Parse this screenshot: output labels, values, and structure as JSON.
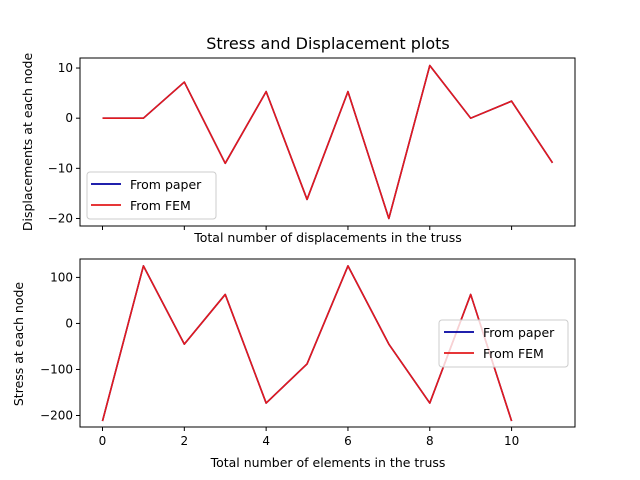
{
  "chart_data": [
    {
      "type": "line",
      "title": "Stress and Displacement plots",
      "xlabel": "Total number of displacements in the truss",
      "ylabel": "Displacements at each node",
      "x": [
        0,
        1,
        2,
        3,
        4,
        5,
        6,
        7,
        8,
        9,
        10,
        11
      ],
      "xlim": [
        -0.55,
        11.55
      ],
      "ylim": [
        -21.5,
        12
      ],
      "yticks": [
        10,
        0,
        -10,
        -20
      ],
      "xticks_shown": false,
      "series": [
        {
          "name": "From paper",
          "color": "#0000a0",
          "values": [
            0.0,
            0.0,
            7.2,
            -9.0,
            5.3,
            -16.2,
            5.3,
            -20.0,
            10.5,
            0.0,
            3.4,
            -8.9
          ]
        },
        {
          "name": "From FEM",
          "color": "#e31a1c",
          "values": [
            0.0,
            0.0,
            7.2,
            -9.0,
            5.3,
            -16.2,
            5.3,
            -20.0,
            10.5,
            0.0,
            3.4,
            -8.9
          ]
        }
      ],
      "legend": "lower-left"
    },
    {
      "type": "line",
      "title": "",
      "xlabel": "Total number of elements in the truss",
      "ylabel": "Stress at each node",
      "x": [
        0,
        1,
        2,
        3,
        4,
        5,
        6,
        7,
        8,
        9,
        10
      ],
      "xlim": [
        -0.55,
        11.55
      ],
      "ylim": [
        -225,
        140
      ],
      "yticks": [
        100,
        0,
        -100,
        -200
      ],
      "xticks": [
        0,
        2,
        4,
        6,
        8,
        10
      ],
      "series": [
        {
          "name": "From paper",
          "color": "#0000a0",
          "values": [
            -212,
            125,
            -45,
            63,
            -173,
            -88,
            125,
            -45,
            -173,
            63,
            -212
          ]
        },
        {
          "name": "From FEM",
          "color": "#e31a1c",
          "values": [
            -212,
            125,
            -45,
            63,
            -173,
            -88,
            125,
            -45,
            -173,
            63,
            -212
          ]
        }
      ],
      "legend": "right"
    }
  ]
}
